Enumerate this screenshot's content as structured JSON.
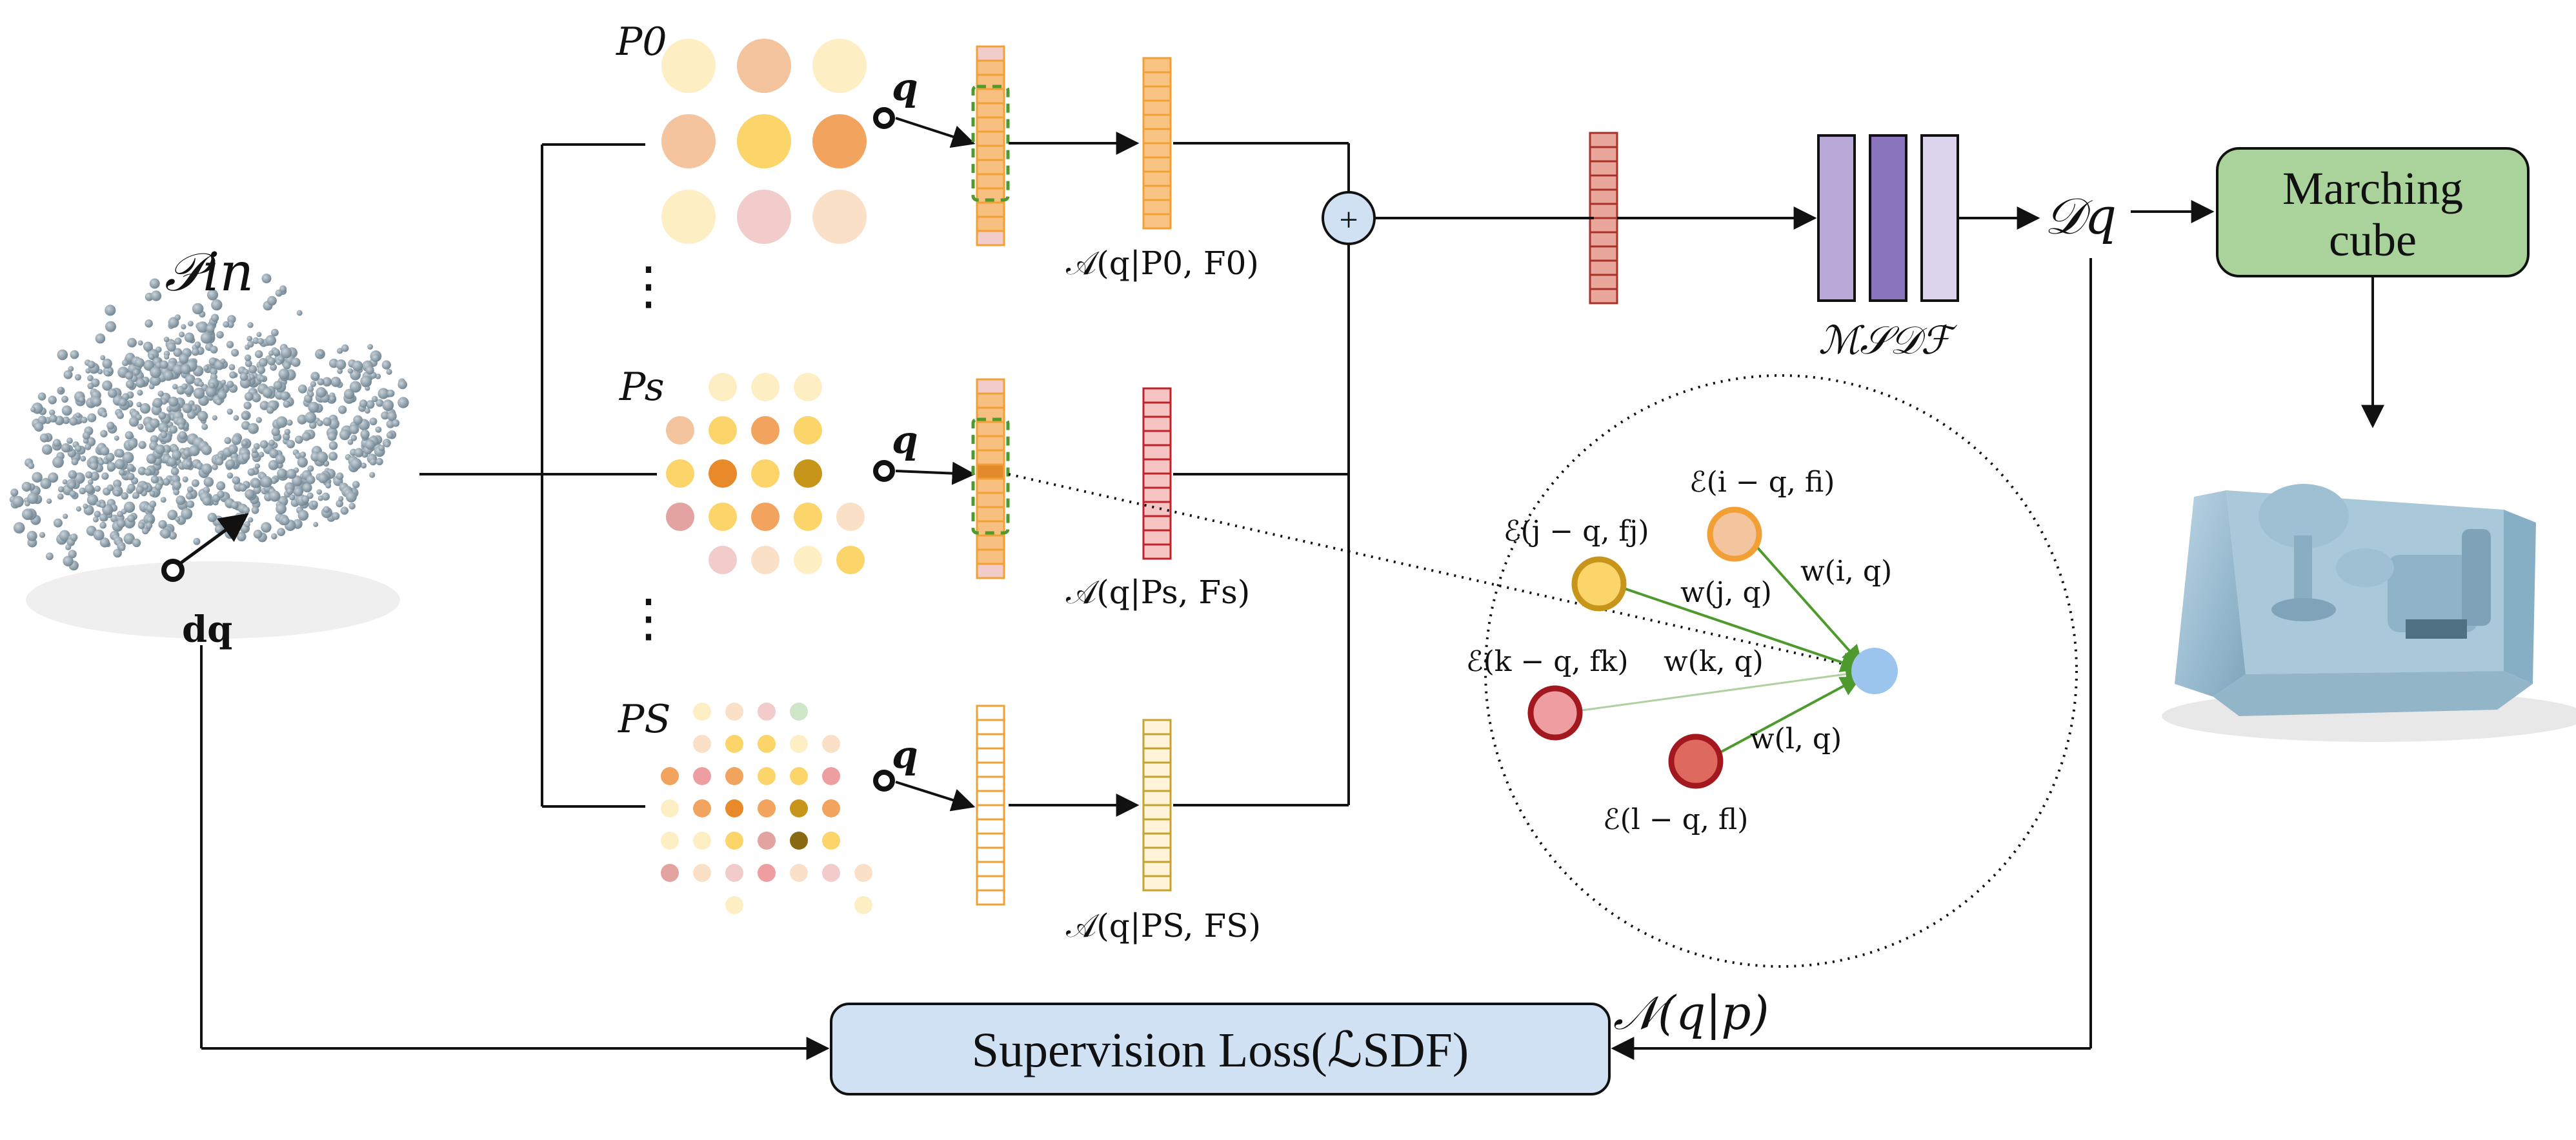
{
  "labels": {
    "input_cloud": "𝒫in",
    "query_point": "dq",
    "level_0": "P0",
    "level_s": "Ps",
    "level_S": "PS",
    "vdots": "⋮",
    "query_q": "q",
    "agg_0": "𝒜(q|P0, F0)",
    "agg_s": "𝒜(q|Ps, Fs)",
    "agg_S": "𝒜(q|PS, FS)",
    "sum_symbol": "+",
    "mlp": "ℳ𝒮𝒟ℱ",
    "sdf_output": "𝒟q",
    "marching_line1": "Marching",
    "marching_line2": "cube",
    "loss": "Supervision Loss(ℒSDF)",
    "neighborhood": "𝒩(q|p)",
    "enc_i": "ℰ(i − q, fi)",
    "enc_j": "ℰ(j − q, fj)",
    "enc_k": "ℰ(k − q, fk)",
    "enc_l": "ℰ(l − q, fl)",
    "w_i": "w(i, q)",
    "w_j": "w(j, q)",
    "w_k": "w(k, q)",
    "w_l": "w(l, q)"
  },
  "colors": {
    "pale_yellow": "#fdeec4",
    "peach": "#f3c49d",
    "light_peach": "#fbe0c8",
    "yellow": "#fbd56a",
    "orange": "#f2a35e",
    "pink": "#f2cccb",
    "dark_orange": "#e88a2a",
    "olive": "#c7951a",
    "dark_olive": "#8a6a10",
    "rose": "#e3a3a0",
    "mint": "#cfe6c8",
    "salmon": "#ee9ea0",
    "orange_vector": "#f2a035",
    "red_vector": "#c0222a",
    "olive_vector": "#c4a32f",
    "brown_vector": "#b03a2a",
    "mlp_1": "#b8a9d9",
    "mlp_2": "#8a74bd",
    "mlp_3": "#dcd4ec",
    "marching_fill": "#a9d39a",
    "loss_fill": "#cfe1f3",
    "sum_fill": "#cfe1f3",
    "neighbor_target": "#9cc5ee",
    "arrow_green": "#4e9a2e"
  }
}
